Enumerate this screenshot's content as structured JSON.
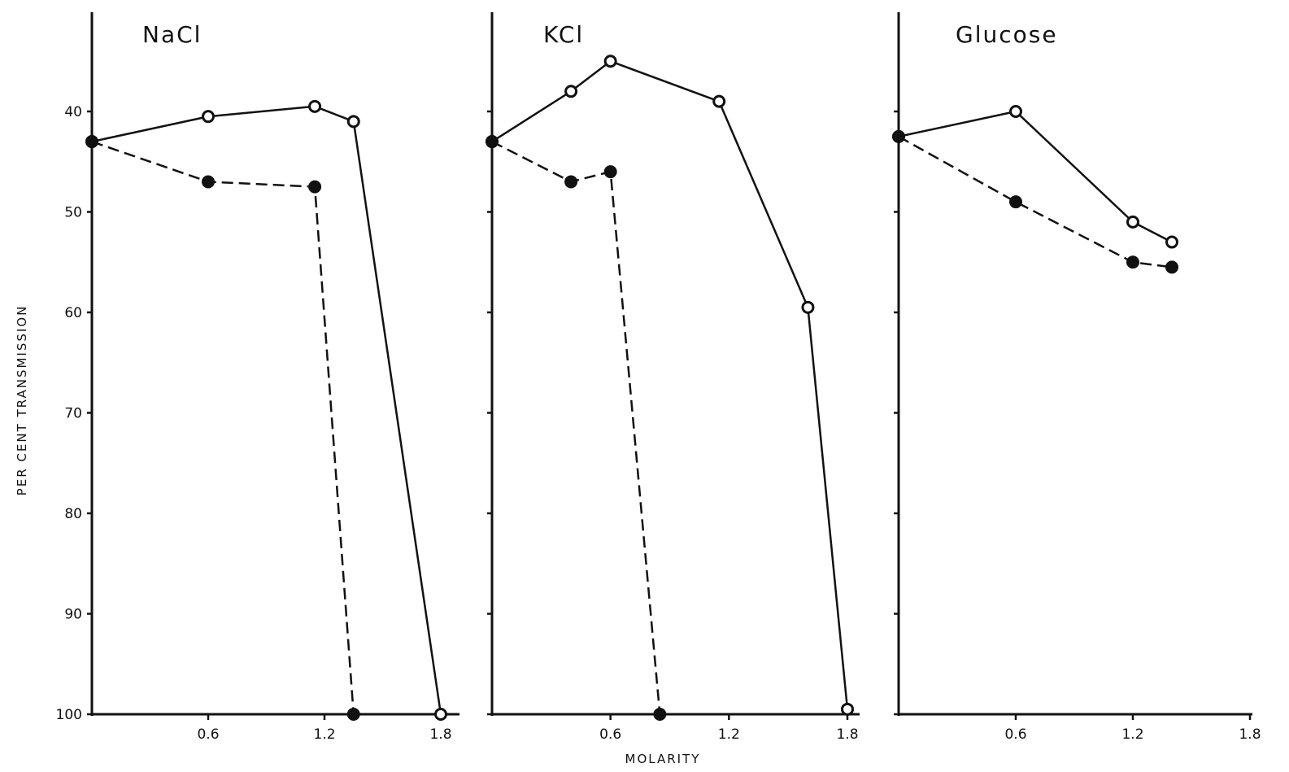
{
  "chart_data": {
    "type": "line",
    "ylabel": "PER CENT TRANSMISSION",
    "xlabel": "MOLARITY",
    "y_axis": {
      "inverted": true,
      "ylim": [
        100,
        30
      ],
      "ticks": [
        40,
        50,
        60,
        70,
        80,
        90,
        100
      ],
      "tick_labels": [
        "40",
        "50",
        "60",
        "70",
        "80",
        "90",
        "100"
      ]
    },
    "x_axis": {
      "xlim": [
        0,
        1.8
      ],
      "ticks": [
        0.6,
        1.2,
        1.8
      ],
      "tick_labels": [
        "0.6",
        "1.2",
        "1.8"
      ]
    },
    "grid": false,
    "legend": "none",
    "panels": [
      {
        "title": "NaCl",
        "series": [
          {
            "style": "solid",
            "marker": "open-circle",
            "x": [
              0,
              0.6,
              1.15,
              1.35,
              1.8
            ],
            "y": [
              43,
              40.5,
              39.5,
              41,
              100
            ]
          },
          {
            "style": "dashed",
            "marker": "filled-circle",
            "x": [
              0,
              0.6,
              1.15,
              1.35
            ],
            "y": [
              43,
              47,
              47.5,
              100
            ]
          }
        ]
      },
      {
        "title": "KCl",
        "series": [
          {
            "style": "solid",
            "marker": "open-circle",
            "x": [
              0,
              0.4,
              0.6,
              1.15,
              1.6,
              1.8
            ],
            "y": [
              43,
              38,
              35,
              39,
              59.5,
              99.5
            ]
          },
          {
            "style": "dashed",
            "marker": "filled-circle",
            "x": [
              0,
              0.4,
              0.6,
              0.85
            ],
            "y": [
              43,
              47,
              46,
              100
            ]
          }
        ]
      },
      {
        "title": "Glucose",
        "series": [
          {
            "style": "solid",
            "marker": "open-circle",
            "x": [
              0,
              0.6,
              1.2,
              1.4
            ],
            "y": [
              42.5,
              40,
              51,
              53
            ]
          },
          {
            "style": "dashed",
            "marker": "filled-circle",
            "x": [
              0,
              0.6,
              1.2,
              1.4
            ],
            "y": [
              42.5,
              49,
              55,
              55.5
            ]
          }
        ]
      }
    ]
  }
}
